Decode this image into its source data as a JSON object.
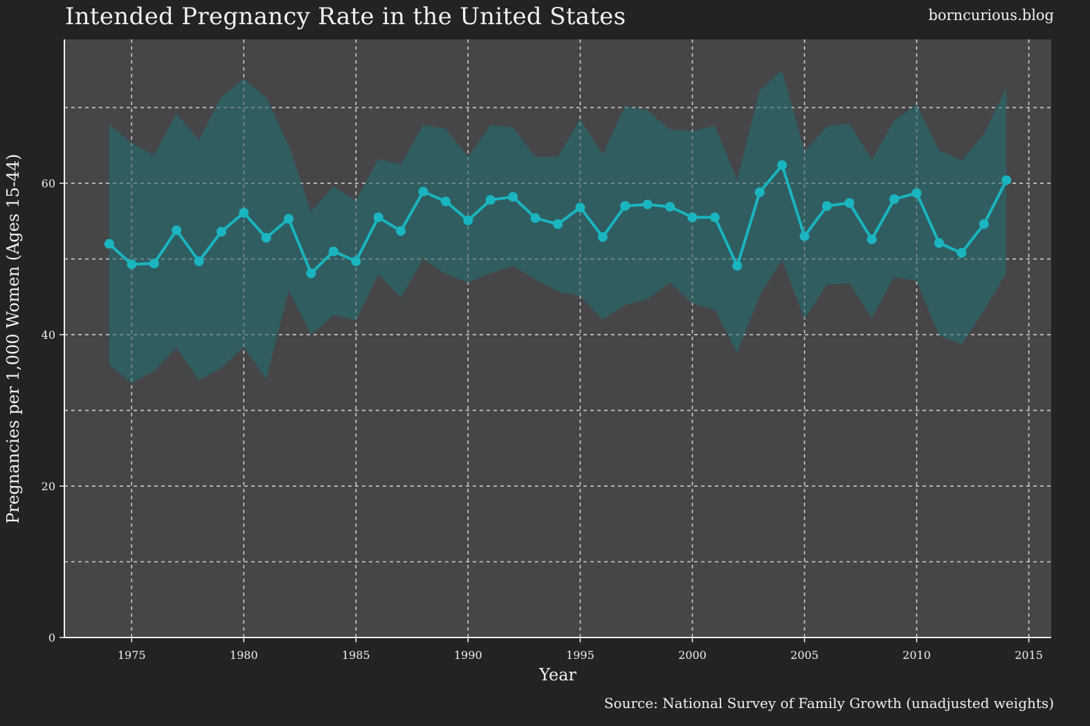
{
  "header": {
    "title": "Intended Pregnancy Rate in the United States",
    "site": "borncurious.blog"
  },
  "footer": {
    "source": "Source: National Survey of Family Growth (unadjusted weights)"
  },
  "colors": {
    "background": "#222325",
    "plot_background": "#464648",
    "line": "#1ab5c0",
    "band": "#2f6063",
    "grid": "#e6e6e6",
    "text": "#f2f2f2"
  },
  "chart_data": {
    "type": "line",
    "title": "Intended Pregnancy Rate in the United States",
    "xlabel": "Year",
    "ylabel": "Pregnancies per 1,000 Women (Ages 15-44)",
    "xlim": [
      1972,
      2016
    ],
    "ylim": [
      0,
      79
    ],
    "x_ticks": [
      1975,
      1980,
      1985,
      1990,
      1995,
      2000,
      2005,
      2010,
      2015
    ],
    "y_ticks": [
      0,
      20,
      40,
      60
    ],
    "y_gridlines": [
      10,
      20,
      30,
      40,
      50,
      60,
      70
    ],
    "grid": true,
    "grid_style": "dashed",
    "x": [
      1974,
      1975,
      1976,
      1977,
      1978,
      1979,
      1980,
      1981,
      1982,
      1983,
      1984,
      1985,
      1986,
      1987,
      1988,
      1989,
      1990,
      1991,
      1992,
      1993,
      1994,
      1995,
      1996,
      1997,
      1998,
      1999,
      2000,
      2001,
      2002,
      2003,
      2004,
      2005,
      2006,
      2007,
      2008,
      2009,
      2010,
      2011,
      2012,
      2013,
      2014
    ],
    "series": [
      {
        "values": [
          52.0,
          49.3,
          49.4,
          53.8,
          49.7,
          53.6,
          56.1,
          52.8,
          55.3,
          48.1,
          51.0,
          49.7,
          55.5,
          53.7,
          58.9,
          57.6,
          55.1,
          57.8,
          58.2,
          55.4,
          54.6,
          56.8,
          52.9,
          57.0,
          57.2,
          56.9,
          55.5,
          55.5,
          49.1,
          58.8,
          62.4,
          53.0,
          57.0,
          57.4,
          52.6,
          57.9,
          58.7,
          52.1,
          50.8,
          54.6,
          60.4
        ],
        "lower": [
          36.0,
          33.6,
          35.2,
          38.3,
          34.0,
          35.6,
          38.4,
          34.1,
          45.8,
          40.0,
          42.6,
          41.9,
          48.0,
          44.9,
          50.0,
          48.0,
          46.9,
          48.1,
          49.1,
          47.3,
          45.7,
          45.1,
          42.0,
          43.9,
          44.7,
          46.9,
          44.1,
          43.3,
          37.6,
          45.2,
          49.9,
          42.1,
          46.6,
          46.8,
          42.2,
          47.6,
          47.1,
          39.9,
          38.7,
          43.2,
          48.2
        ],
        "upper": [
          67.8,
          65.3,
          63.7,
          69.2,
          65.7,
          71.4,
          73.8,
          71.3,
          65.0,
          56.3,
          59.6,
          57.7,
          63.2,
          62.5,
          67.7,
          67.2,
          63.5,
          67.7,
          67.4,
          63.5,
          63.5,
          68.5,
          63.8,
          70.2,
          69.6,
          67.1,
          66.9,
          67.6,
          60.4,
          72.3,
          74.9,
          64.2,
          67.5,
          67.9,
          63.1,
          68.3,
          70.4,
          64.4,
          63.0,
          66.5,
          72.6
        ]
      }
    ]
  }
}
